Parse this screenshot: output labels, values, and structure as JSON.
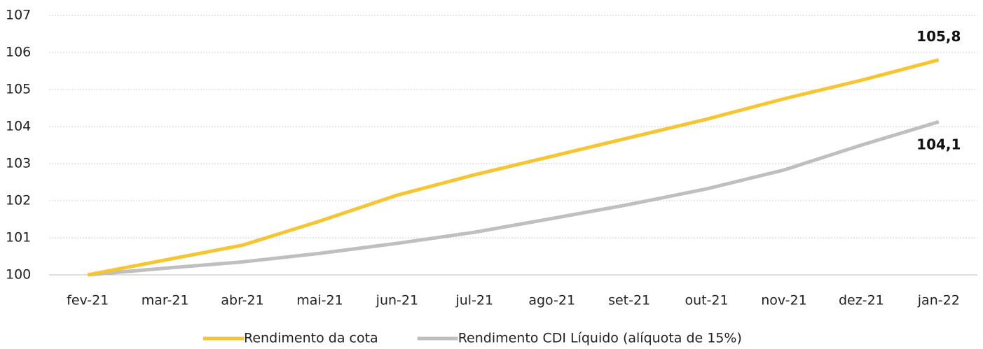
{
  "chart_data": {
    "type": "line",
    "categories": [
      "fev-21",
      "mar-21",
      "abr-21",
      "mai-21",
      "jun-21",
      "jul-21",
      "ago-21",
      "set-21",
      "out-21",
      "nov-21",
      "dez-21",
      "jan-22"
    ],
    "series": [
      {
        "name": "Rendimento da cota",
        "color": "#f5c533",
        "values": [
          100,
          100.4,
          100.8,
          101.45,
          102.15,
          102.7,
          103.2,
          103.7,
          104.2,
          104.75,
          105.25,
          105.8
        ],
        "value_labels": [
          null,
          null,
          null,
          null,
          null,
          null,
          null,
          null,
          null,
          null,
          null,
          "105,8"
        ]
      },
      {
        "name": "Rendimento CDI Líquido (alíquota de 15%)",
        "color": "#bfbfbf",
        "values": [
          100,
          100.18,
          100.35,
          100.58,
          100.85,
          101.15,
          101.52,
          101.9,
          102.32,
          102.83,
          103.5,
          104.13
        ],
        "value_labels": [
          null,
          null,
          null,
          null,
          null,
          null,
          null,
          null,
          null,
          null,
          null,
          "104,1"
        ]
      }
    ],
    "ylim": [
      100,
      107
    ],
    "yticks": [
      100,
      101,
      102,
      103,
      104,
      105,
      106,
      107
    ],
    "grid": true,
    "legend": "bottom"
  }
}
